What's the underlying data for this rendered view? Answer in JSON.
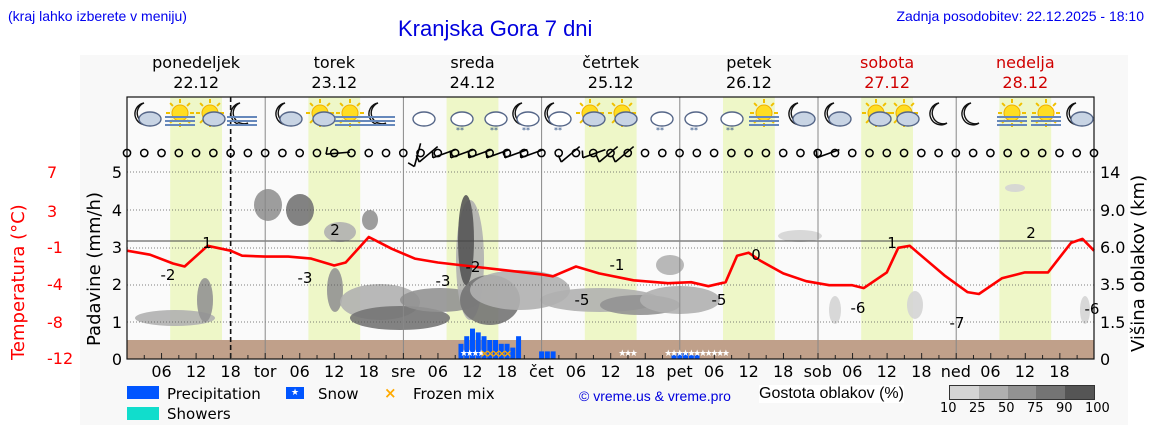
{
  "header": {
    "menu_hint": "(kraj lahko izberete v meniju)",
    "title": "Kranjska Gora 7 dni",
    "last_update": "Zadnja posodobitev: 22.12.2025 - 18:10"
  },
  "days": [
    {
      "name": "ponedeljek",
      "date": "22.12",
      "weekend": false
    },
    {
      "name": "torek",
      "date": "23.12",
      "weekend": false
    },
    {
      "name": "sreda",
      "date": "24.12",
      "weekend": false
    },
    {
      "name": "četrtek",
      "date": "25.12",
      "weekend": false
    },
    {
      "name": "petek",
      "date": "26.12",
      "weekend": false
    },
    {
      "name": "sobota",
      "date": "27.12",
      "weekend": true
    },
    {
      "name": "nedelja",
      "date": "28.12",
      "weekend": true
    }
  ],
  "axes": {
    "temp_label": "Temperatura (°C)",
    "temp_ticks": [
      "7",
      "3",
      "-1",
      "-4",
      "-8",
      "-12"
    ],
    "precip_label": "Padavine (mm/h)",
    "precip_ticks": [
      "5",
      "4",
      "3",
      "2",
      "1",
      "0"
    ],
    "cloud_label": "Višina oblakov (km)",
    "cloud_ticks": [
      "14",
      "9.0",
      "6.0",
      "3.5",
      "1.5",
      "0"
    ],
    "x_ticks": [
      "06",
      "12",
      "18",
      "tor",
      "06",
      "12",
      "18",
      "sre",
      "06",
      "12",
      "18",
      "čet",
      "06",
      "12",
      "18",
      "pet",
      "06",
      "12",
      "18",
      "sob",
      "06",
      "12",
      "18",
      "ned",
      "06",
      "12",
      "18"
    ]
  },
  "legend": {
    "precipitation": "Precipitation",
    "snow": "Snow",
    "frozen_mix": "Frozen mix",
    "showers": "Showers",
    "copyright": "© vreme.us & vreme.pro",
    "cloud_density_title": "Gostota oblakov (%)",
    "cloud_density_ticks": [
      "10",
      "25",
      "50",
      "75",
      "90",
      "100"
    ]
  },
  "colors": {
    "temperature": "#ff0000",
    "precipitation": "#0055ff",
    "showers": "#11ddcc",
    "frozen_mix": "#ffaa00",
    "ground": "#c0a08a",
    "daylight": "#eef7c8",
    "title_blue": "#0000dd",
    "weekend_red": "#d00000"
  },
  "chart_data": {
    "type": "line",
    "title": "Kranjska Gora 7 dni",
    "xlabel": "",
    "ylabel": "Temperatura (°C)",
    "ylim": [
      -12,
      7
    ],
    "grid": true,
    "x_start": "22.12 00:00",
    "x_step_hours": 3,
    "temperature_annotations": [
      {
        "time": "22.12 06",
        "value": -2
      },
      {
        "time": "22.12 14",
        "value": 1
      },
      {
        "time": "23.12 06",
        "value": -3
      },
      {
        "time": "23.12 14",
        "value": 2
      },
      {
        "time": "24.12 06",
        "value": -3
      },
      {
        "time": "24.12 11",
        "value": -2
      },
      {
        "time": "25.12 05",
        "value": -5
      },
      {
        "time": "25.12 13",
        "value": -1
      },
      {
        "time": "26.12 05",
        "value": -5
      },
      {
        "time": "26.12 13",
        "value": 0
      },
      {
        "time": "27.12 06",
        "value": -6
      },
      {
        "time": "27.12 13",
        "value": 1
      },
      {
        "time": "28.12 06",
        "value": -7
      },
      {
        "time": "28.12 14",
        "value": 2
      },
      {
        "time": "28.12 23",
        "value": -6
      }
    ],
    "precipitation_mmh": {
      "series": [
        {
          "name": "Precipitation",
          "x": [
            "24.12 10",
            "24.12 11",
            "24.12 12",
            "24.12 13",
            "24.12 14",
            "24.12 15",
            "24.12 16",
            "24.12 17",
            "24.12 18",
            "24.12 19",
            "24.12 20",
            "25.12 00",
            "25.12 01",
            "25.12 02",
            "25.12 23",
            "26.12 00",
            "26.12 01",
            "26.12 02",
            "26.12 03"
          ],
          "values": [
            0.4,
            0.6,
            0.8,
            0.7,
            0.6,
            0.5,
            0.5,
            0.4,
            0.4,
            0.3,
            0.6,
            0.2,
            0.2,
            0.2,
            0.1,
            0.15,
            0.15,
            0.1,
            0.1
          ]
        }
      ],
      "precip_types": {
        "snow": [
          "24.12 10-13",
          "24.12 19",
          "25.12 00-02",
          "25.12 22 - 26.12 08"
        ],
        "frozen_mix": [
          "24.12 14-18"
        ]
      }
    },
    "legend": [
      "Precipitation",
      "Snow",
      "Frozen mix",
      "Showers",
      "Gostota oblakov (%)"
    ],
    "legend_position": "bottom"
  }
}
